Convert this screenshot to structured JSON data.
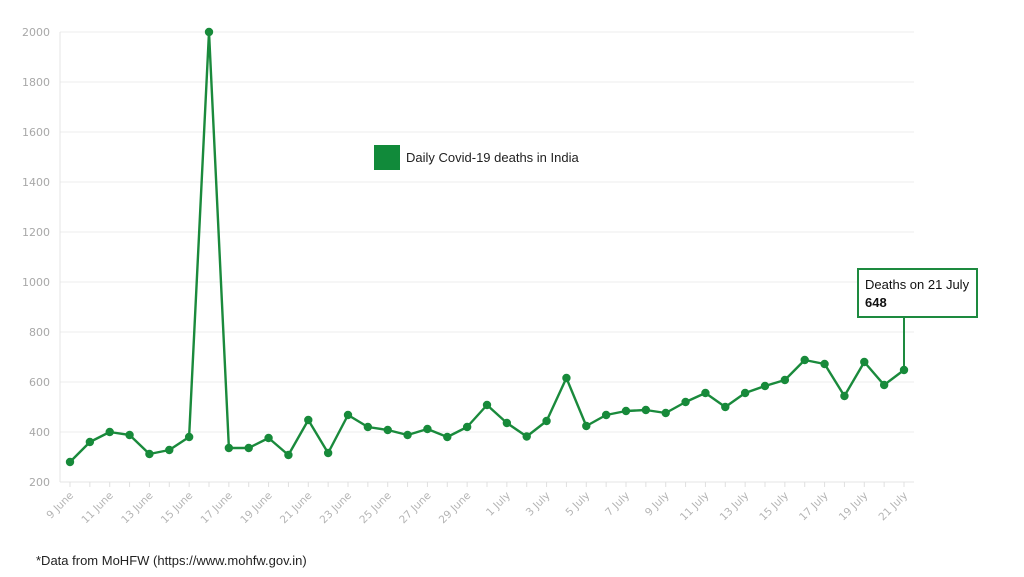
{
  "colors": {
    "series": "#1a8a3c",
    "marker": "#178a3a",
    "annotation_border": "#1d8a3f",
    "legend_swatch": "#118a3a"
  },
  "legend": {
    "label": "Daily Covid-19 deaths in India"
  },
  "annotation": {
    "title": "Deaths on 21 July",
    "value": "648"
  },
  "footnote": "*Data from MoHFW (https://www.mohfw.gov.in)",
  "chart_data": {
    "type": "line",
    "title": "",
    "xlabel": "",
    "ylabel": "",
    "ylim": [
      200,
      2000
    ],
    "yticks": [
      200,
      400,
      600,
      800,
      1000,
      1200,
      1400,
      1600,
      1800,
      2000
    ],
    "grid": true,
    "legend_position": "upper-center",
    "x_tick_labels": [
      "9 June",
      "11 June",
      "13 June",
      "15 June",
      "17 June",
      "19 June",
      "21 June",
      "23 June",
      "25 June",
      "27 June",
      "29 June",
      "1 July",
      "3 July",
      "5 July",
      "7 July",
      "9 July",
      "11 July",
      "13 July",
      "15 July",
      "17 July",
      "19 July",
      "21 July"
    ],
    "categories": [
      "9 June",
      "10 June",
      "11 June",
      "12 June",
      "13 June",
      "14 June",
      "15 June",
      "16 June",
      "17 June",
      "18 June",
      "19 June",
      "20 June",
      "21 June",
      "22 June",
      "23 June",
      "24 June",
      "25 June",
      "26 June",
      "27 June",
      "28 June",
      "29 June",
      "30 June",
      "1 July",
      "2 July",
      "3 July",
      "4 July",
      "5 July",
      "6 July",
      "7 July",
      "8 July",
      "9 July",
      "10 July",
      "11 July",
      "12 July",
      "13 July",
      "14 July",
      "15 July",
      "16 July",
      "17 July",
      "18 July",
      "19 July",
      "20 July",
      "21 July"
    ],
    "series": [
      {
        "name": "Daily Covid-19 deaths in India",
        "values": [
          280,
          360,
          400,
          388,
          312,
          328,
          380,
          2003,
          336,
          336,
          376,
          308,
          448,
          316,
          468,
          420,
          408,
          388,
          412,
          380,
          420,
          508,
          436,
          382,
          444,
          616,
          424,
          468,
          484,
          488,
          476,
          520,
          556,
          500,
          556,
          584,
          608,
          688,
          672,
          544,
          680,
          588,
          648
        ]
      }
    ],
    "annotations": [
      {
        "x": "21 July",
        "text": "Deaths on 21 July",
        "value": 648
      }
    ]
  }
}
